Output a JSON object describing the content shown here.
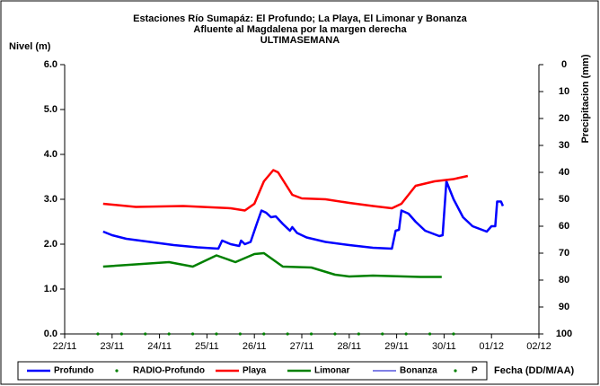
{
  "chart_data": {
    "type": "line",
    "title": [
      "Estaciones Río Sumapáz: El Profundo; La Playa, El Limonar y Bonanza",
      "Afluente al Magdalena por la margen derecha",
      "ULTIMASEMANA"
    ],
    "ylabel": "Nivel (m)",
    "y2label": "Precipitacion (mm)",
    "xlabel": "Fecha (DD/M/AA)",
    "xlim": [
      0,
      10
    ],
    "xticks": [
      {
        "value": 0,
        "label": "22/11"
      },
      {
        "value": 1,
        "label": "23/11"
      },
      {
        "value": 2,
        "label": "24/11"
      },
      {
        "value": 3,
        "label": "25/11"
      },
      {
        "value": 4,
        "label": "26/11"
      },
      {
        "value": 5,
        "label": "27/11"
      },
      {
        "value": 6,
        "label": "28/11"
      },
      {
        "value": 7,
        "label": "29/11"
      },
      {
        "value": 8,
        "label": "30/11"
      },
      {
        "value": 9,
        "label": "01/12"
      },
      {
        "value": 10,
        "label": "02/12"
      }
    ],
    "ylim": [
      0,
      6
    ],
    "yticks": [
      {
        "value": 0,
        "label": "0.0"
      },
      {
        "value": 1,
        "label": "1.0"
      },
      {
        "value": 2,
        "label": "2.0"
      },
      {
        "value": 3,
        "label": "3.0"
      },
      {
        "value": 4,
        "label": "4.0"
      },
      {
        "value": 5,
        "label": "5.0"
      },
      {
        "value": 6,
        "label": "6.0"
      }
    ],
    "y2lim": [
      0,
      100
    ],
    "y2_inverted": true,
    "y2ticks": [
      0,
      10,
      20,
      30,
      40,
      50,
      60,
      70,
      80,
      90,
      100
    ],
    "series": [
      {
        "name": "Profundo",
        "color": "#0000ff",
        "style": "line",
        "width": 2.5,
        "x": [
          0.81,
          1.0,
          1.3,
          1.8,
          2.3,
          2.8,
          3.24,
          3.32,
          3.5,
          3.68,
          3.72,
          3.8,
          3.92,
          4.05,
          4.15,
          4.25,
          4.35,
          4.45,
          4.6,
          4.75,
          4.8,
          4.9,
          5.1,
          5.5,
          6.0,
          6.5,
          6.9,
          6.98,
          7.05,
          7.1,
          7.25,
          7.4,
          7.6,
          7.9,
          7.97,
          8.05,
          8.2,
          8.4,
          8.6,
          8.85,
          8.9,
          9.0,
          9.08,
          9.12,
          9.2,
          9.24
        ],
        "values": [
          2.28,
          2.2,
          2.12,
          2.05,
          1.98,
          1.93,
          1.9,
          2.08,
          2.0,
          1.96,
          2.08,
          2.0,
          2.05,
          2.45,
          2.75,
          2.7,
          2.6,
          2.62,
          2.45,
          2.3,
          2.38,
          2.25,
          2.15,
          2.05,
          1.98,
          1.92,
          1.9,
          2.3,
          2.32,
          2.75,
          2.68,
          2.5,
          2.3,
          2.18,
          2.2,
          3.4,
          3.0,
          2.6,
          2.4,
          2.3,
          2.28,
          2.4,
          2.4,
          2.95,
          2.95,
          2.85
        ]
      },
      {
        "name": "RADIO-Profundo",
        "color": "#008000",
        "style": "dots",
        "x": [
          0.7,
          1.2,
          1.7,
          2.2,
          2.7,
          3.2,
          3.7,
          4.2,
          4.7,
          5.2,
          5.7,
          6.2,
          6.7,
          7.2,
          7.7,
          8.2
        ],
        "values": [
          0,
          0,
          0,
          0,
          0,
          0,
          0,
          0,
          0,
          0,
          0,
          0,
          0,
          0,
          0,
          0
        ]
      },
      {
        "name": "Playa",
        "color": "#ff0000",
        "style": "line",
        "width": 2.5,
        "x": [
          0.81,
          1.5,
          2.5,
          3.5,
          3.8,
          4.0,
          4.2,
          4.4,
          4.5,
          4.8,
          5.0,
          5.5,
          6.0,
          6.5,
          6.9,
          7.1,
          7.4,
          7.8,
          8.2,
          8.5
        ],
        "values": [
          2.9,
          2.83,
          2.85,
          2.8,
          2.75,
          2.9,
          3.4,
          3.65,
          3.6,
          3.1,
          3.02,
          3.0,
          2.92,
          2.85,
          2.8,
          2.9,
          3.3,
          3.4,
          3.45,
          3.52
        ]
      },
      {
        "name": "Limonar",
        "color": "#008000",
        "style": "line",
        "width": 2.5,
        "x": [
          0.81,
          1.5,
          2.2,
          2.7,
          3.2,
          3.6,
          4.0,
          4.2,
          4.6,
          5.2,
          5.7,
          6.0,
          6.5,
          7.5,
          7.95
        ],
        "values": [
          1.5,
          1.55,
          1.6,
          1.5,
          1.75,
          1.6,
          1.78,
          1.8,
          1.5,
          1.48,
          1.32,
          1.28,
          1.3,
          1.27,
          1.27
        ]
      },
      {
        "name": "Bonanza",
        "color": "#0000cc",
        "style": "line",
        "width": 1,
        "x": [],
        "values": []
      },
      {
        "name": "P",
        "color": "#008000",
        "style": "dots",
        "x": [],
        "values": []
      }
    ]
  }
}
